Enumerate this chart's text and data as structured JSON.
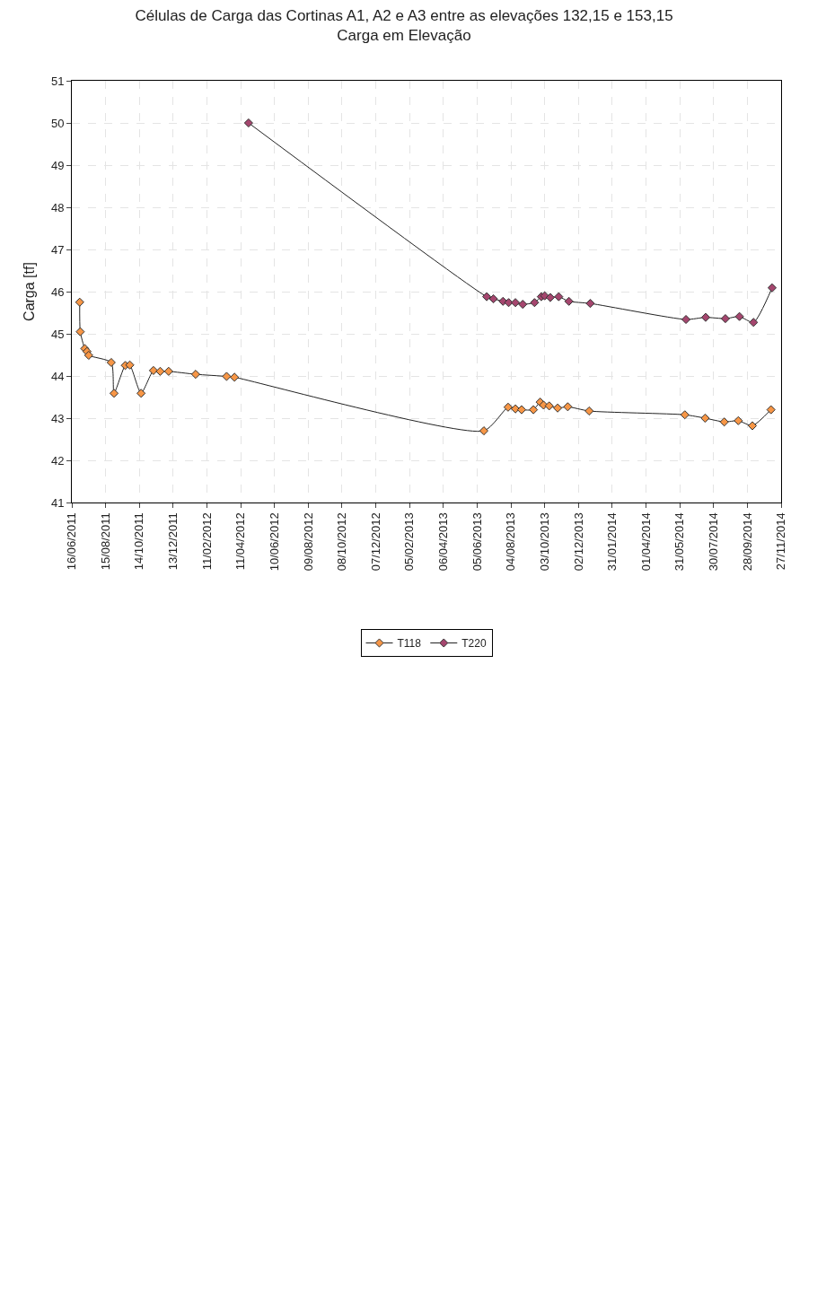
{
  "chart_data": {
    "type": "line",
    "title": "Células de Carga das Cortinas A1, A2 e A3 entre as elevações 132,15 e 153,15",
    "subtitle": "Carga em Elevação",
    "ylabel": "Carga [tf]",
    "xlim": [
      "2011-06-16",
      "2014-11-27"
    ],
    "xticks": [
      {
        "value": "2011-06-16",
        "label": "16/06/2011"
      },
      {
        "value": "2011-08-15",
        "label": "15/08/2011"
      },
      {
        "value": "2011-10-14",
        "label": "14/10/2011"
      },
      {
        "value": "2011-12-13",
        "label": "13/12/2011"
      },
      {
        "value": "2012-02-11",
        "label": "11/02/2012"
      },
      {
        "value": "2012-04-11",
        "label": "11/04/2012"
      },
      {
        "value": "2012-06-10",
        "label": "10/06/2012"
      },
      {
        "value": "2012-08-09",
        "label": "09/08/2012"
      },
      {
        "value": "2012-10-08",
        "label": "08/10/2012"
      },
      {
        "value": "2012-12-07",
        "label": "07/12/2012"
      },
      {
        "value": "2013-02-05",
        "label": "05/02/2013"
      },
      {
        "value": "2013-04-06",
        "label": "06/04/2013"
      },
      {
        "value": "2013-06-05",
        "label": "05/06/2013"
      },
      {
        "value": "2013-08-04",
        "label": "04/08/2013"
      },
      {
        "value": "2013-10-03",
        "label": "03/10/2013"
      },
      {
        "value": "2013-12-02",
        "label": "02/12/2013"
      },
      {
        "value": "2014-01-31",
        "label": "31/01/2014"
      },
      {
        "value": "2014-04-01",
        "label": "01/04/2014"
      },
      {
        "value": "2014-05-31",
        "label": "31/05/2014"
      },
      {
        "value": "2014-07-30",
        "label": "30/07/2014"
      },
      {
        "value": "2014-09-28",
        "label": "28/09/2014"
      },
      {
        "value": "2014-11-27",
        "label": "27/11/2014"
      }
    ],
    "ylim": [
      41,
      51
    ],
    "yticks": [
      41,
      42,
      43,
      44,
      45,
      46,
      47,
      48,
      49,
      50,
      51
    ],
    "grid": true,
    "legend": "bottom",
    "marker": "diamond",
    "line_style": "solid",
    "series": [
      {
        "name": "T118",
        "color": "#f79646",
        "x": [
          "2011-06-30",
          "2011-07-01",
          "2011-07-09",
          "2011-07-13",
          "2011-07-16",
          "2011-08-25",
          "2011-08-30",
          "2011-09-19",
          "2011-09-27",
          "2011-10-17",
          "2011-11-08",
          "2011-11-20",
          "2011-12-05",
          "2012-01-22",
          "2012-03-17",
          "2012-03-31",
          "2013-06-17",
          "2013-07-30",
          "2013-08-12",
          "2013-08-23",
          "2013-09-13",
          "2013-09-25",
          "2013-10-01",
          "2013-10-11",
          "2013-10-26",
          "2013-11-13",
          "2013-12-21",
          "2014-06-09",
          "2014-07-15",
          "2014-08-18",
          "2014-09-12",
          "2014-10-07",
          "2014-11-09"
        ],
        "values": [
          45.75,
          45.05,
          44.65,
          44.58,
          44.49,
          44.32,
          43.59,
          44.25,
          44.26,
          43.59,
          44.13,
          44.11,
          44.11,
          44.04,
          43.99,
          43.97,
          42.7,
          43.26,
          43.22,
          43.2,
          43.2,
          43.38,
          43.31,
          43.29,
          43.24,
          43.27,
          43.17,
          43.08,
          43.0,
          42.91,
          42.94,
          42.82,
          43.2
        ]
      },
      {
        "name": "T220",
        "color": "#a5466e",
        "x": [
          "2012-04-25",
          "2013-06-22",
          "2013-07-04",
          "2013-07-21",
          "2013-07-31",
          "2013-08-12",
          "2013-08-25",
          "2013-09-15",
          "2013-09-27",
          "2013-10-03",
          "2013-10-13",
          "2013-10-28",
          "2013-11-15",
          "2013-12-23",
          "2014-06-11",
          "2014-07-16",
          "2014-08-20",
          "2014-09-14",
          "2014-10-09",
          "2014-11-11"
        ],
        "values": [
          50.0,
          45.88,
          45.83,
          45.77,
          45.74,
          45.74,
          45.7,
          45.74,
          45.88,
          45.9,
          45.86,
          45.88,
          45.77,
          45.72,
          45.34,
          45.39,
          45.36,
          45.41,
          45.27,
          46.09
        ]
      }
    ]
  }
}
